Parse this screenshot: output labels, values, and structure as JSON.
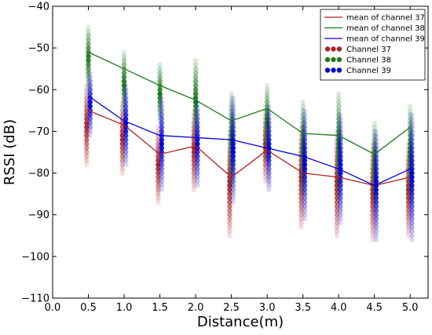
{
  "chart_data": {
    "type": "scatter",
    "xlabel": "Distance(m)",
    "ylabel": "RSSI (dB)",
    "xlim": [
      0.0,
      5.25
    ],
    "ylim": [
      -110,
      -40
    ],
    "xticks": [
      "0.0",
      "0.5",
      "1.0",
      "1.5",
      "2.0",
      "2.5",
      "3.0",
      "3.5",
      "4.0",
      "4.5",
      "5.0"
    ],
    "yticks": [
      "−40",
      "−50",
      "−60",
      "−70",
      "−80",
      "−90",
      "−100",
      "−110"
    ],
    "grid": false,
    "legend_position": "top-right",
    "x": [
      0.5,
      1.0,
      1.5,
      2.0,
      2.5,
      3.0,
      3.5,
      4.0,
      4.5,
      5.0
    ],
    "mean_series": [
      {
        "name": "mean of channel 37",
        "color": "#b22222",
        "values": [
          -65,
          -68.5,
          -75.5,
          -73.5,
          -81,
          -74.5,
          -80,
          -81,
          -83,
          -81
        ]
      },
      {
        "name": "mean of channel 38",
        "color": "#1a7a1a",
        "values": [
          -51,
          -55,
          -59,
          -62.5,
          -67.5,
          -64.5,
          -70.5,
          -71,
          -75.5,
          -69
        ]
      },
      {
        "name": "mean of channel 39",
        "color": "#0000dd",
        "values": [
          -61.5,
          -67.5,
          -71,
          -71.5,
          -72,
          -74,
          -76,
          -79,
          -83,
          -79
        ]
      }
    ],
    "scatter_series": [
      {
        "name": "Channel 37",
        "color": "#b22222",
        "ranges": [
          [
            -78,
            -59
          ],
          [
            -80,
            -63
          ],
          [
            -87,
            -69
          ],
          [
            -84,
            -65
          ],
          [
            -95,
            -70
          ],
          [
            -82,
            -65
          ],
          [
            -93,
            -69
          ],
          [
            -95,
            -70
          ],
          [
            -96,
            -73
          ],
          [
            -95,
            -73
          ]
        ]
      },
      {
        "name": "Channel 38",
        "color": "#1a7a1a",
        "ranges": [
          [
            -60,
            -45
          ],
          [
            -66,
            -51
          ],
          [
            -68,
            -54
          ],
          [
            -72,
            -53
          ],
          [
            -83,
            -61
          ],
          [
            -77,
            -59
          ],
          [
            -85,
            -63
          ],
          [
            -86,
            -61
          ],
          [
            -87,
            -68
          ],
          [
            -87,
            -64
          ]
        ]
      },
      {
        "name": "Channel 39",
        "color": "#0000dd",
        "ranges": [
          [
            -71,
            -56
          ],
          [
            -78,
            -59
          ],
          [
            -84,
            -62
          ],
          [
            -83,
            -63
          ],
          [
            -87,
            -62
          ],
          [
            -84,
            -64
          ],
          [
            -91,
            -65
          ],
          [
            -92,
            -66
          ],
          [
            -96,
            -70
          ],
          [
            -96,
            -66
          ]
        ]
      }
    ]
  }
}
